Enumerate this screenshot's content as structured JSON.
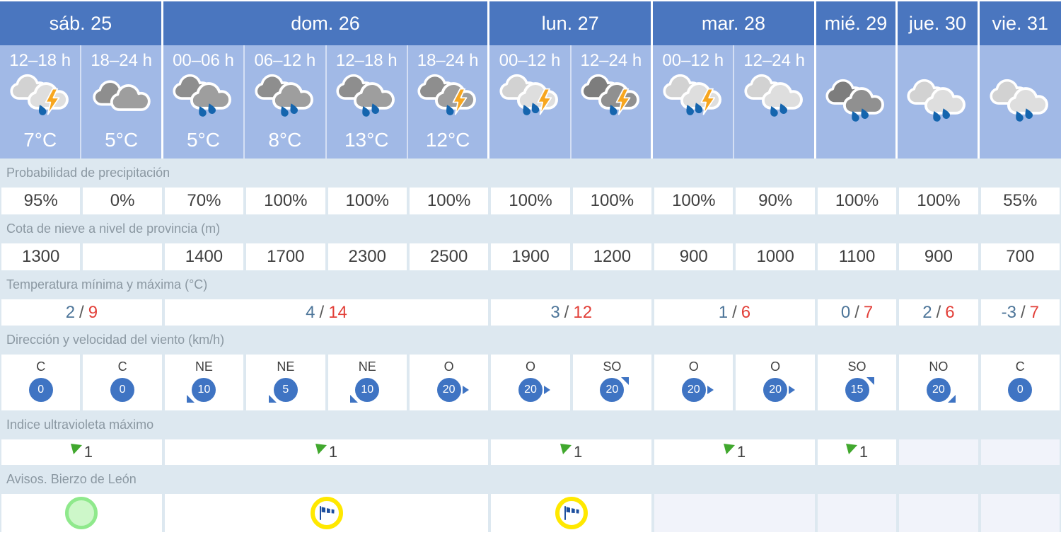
{
  "colors": {
    "day_header_bg": "#4a76bf",
    "hour_cell_bg": "#a1b9e6",
    "label_row_bg": "#dde8f0",
    "label_text": "#8b98a2",
    "value_text": "#3f3f3f",
    "temp_min": "#4d7599",
    "temp_max": "#e23f38",
    "wind_circle": "#3f74c3",
    "uv_flag_green": "#41a82e",
    "warning_green_border": "#8fe98c",
    "warning_green_fill": "#cdf7c9",
    "warning_yellow": "#ffe800",
    "windsock_navy": "#1d4f9f",
    "rain_drop": "#1565ae",
    "lightning_orange": "#f7a61f",
    "cloud_light_back": "#d2d2d2",
    "cloud_light_front": "#dedede",
    "cloud_gray_back": "#8e8e8e",
    "cloud_gray_front": "#9e9e9e",
    "cloud_dark_back": "#7d7d7d",
    "cloud_dark_front": "#909090",
    "empty_cell_bg": "#f1f3fa"
  },
  "table": {
    "days": [
      {
        "label": "sáb. 25",
        "span": 2
      },
      {
        "label": "dom. 26",
        "span": 4
      },
      {
        "label": "lun. 27",
        "span": 2
      },
      {
        "label": "mar. 28",
        "span": 2
      },
      {
        "label": "mié. 29",
        "span": 1
      },
      {
        "label": "jue. 30",
        "span": 1
      },
      {
        "label": "vie. 31",
        "span": 1
      }
    ],
    "columns": [
      {
        "hour": "12–18 h",
        "temp": "7°C",
        "icon": {
          "name": "storm-icon",
          "clouds": "light",
          "drops": 1,
          "bolt": true
        }
      },
      {
        "hour": "18–24 h",
        "temp": "5°C",
        "icon": {
          "name": "cloudy-icon",
          "clouds": "gray",
          "drops": 0,
          "bolt": false
        }
      },
      {
        "hour": "00–06 h",
        "temp": "5°C",
        "icon": {
          "name": "rain-icon",
          "clouds": "gray",
          "drops": 2,
          "bolt": false
        }
      },
      {
        "hour": "06–12 h",
        "temp": "8°C",
        "icon": {
          "name": "rain-icon",
          "clouds": "gray",
          "drops": 2,
          "bolt": false
        }
      },
      {
        "hour": "12–18 h",
        "temp": "13°C",
        "icon": {
          "name": "rain-icon",
          "clouds": "gray",
          "drops": 2,
          "bolt": false
        }
      },
      {
        "hour": "18–24 h",
        "temp": "12°C",
        "icon": {
          "name": "storm-rain-icon",
          "clouds": "gray",
          "drops": 1,
          "bolt": true
        }
      },
      {
        "hour": "00–12 h",
        "temp": "",
        "icon": {
          "name": "storm-rain-icon",
          "clouds": "light",
          "drops": 2,
          "bolt": true
        }
      },
      {
        "hour": "12–24 h",
        "temp": "",
        "icon": {
          "name": "storm-rain-icon",
          "clouds": "dark",
          "drops": 1,
          "bolt": true
        }
      },
      {
        "hour": "00–12 h",
        "temp": "",
        "icon": {
          "name": "storm-rain-icon",
          "clouds": "light",
          "drops": 2,
          "bolt": true
        }
      },
      {
        "hour": "12–24 h",
        "temp": "",
        "icon": {
          "name": "rain-icon",
          "clouds": "light",
          "drops": 2,
          "bolt": false
        }
      },
      {
        "hour": "",
        "temp": "",
        "icon": {
          "name": "rain-icon",
          "clouds": "dark",
          "drops": 2,
          "bolt": false
        }
      },
      {
        "hour": "",
        "temp": "",
        "icon": {
          "name": "rain-icon",
          "clouds": "light",
          "drops": 2,
          "bolt": false
        }
      },
      {
        "hour": "",
        "temp": "",
        "icon": {
          "name": "rain-icon",
          "clouds": "light",
          "drops": 2,
          "bolt": false
        }
      }
    ],
    "rows": {
      "precipitation": {
        "label": "Probabilidad de precipitación",
        "values": [
          "95%",
          "0%",
          "70%",
          "100%",
          "100%",
          "100%",
          "100%",
          "100%",
          "100%",
          "90%",
          "100%",
          "100%",
          "55%"
        ]
      },
      "snow_level": {
        "label": "Cota de nieve a nivel de provincia (m)",
        "values": [
          "1300",
          "",
          "1400",
          "1700",
          "2300",
          "2500",
          "1900",
          "1200",
          "900",
          "1000",
          "1100",
          "900",
          "700"
        ]
      },
      "temperature": {
        "label": "Temperatura mínima y máxima (°C)",
        "separator": "/",
        "values": [
          {
            "min": "2",
            "max": "9",
            "span": 2
          },
          {
            "min": "4",
            "max": "14",
            "span": 4
          },
          {
            "min": "3",
            "max": "12",
            "span": 2
          },
          {
            "min": "1",
            "max": "6",
            "span": 2
          },
          {
            "min": "0",
            "max": "7",
            "span": 1
          },
          {
            "min": "2",
            "max": "6",
            "span": 1
          },
          {
            "min": "-3",
            "max": "7",
            "span": 1
          }
        ]
      },
      "wind": {
        "label": "Dirección y velocidad del viento (km/h)",
        "values": [
          {
            "dir": "C",
            "speed": "0",
            "arrow": "none"
          },
          {
            "dir": "C",
            "speed": "0",
            "arrow": "none"
          },
          {
            "dir": "NE",
            "speed": "10",
            "arrow": "sw"
          },
          {
            "dir": "NE",
            "speed": "5",
            "arrow": "sw"
          },
          {
            "dir": "NE",
            "speed": "10",
            "arrow": "sw"
          },
          {
            "dir": "O",
            "speed": "20",
            "arrow": "e"
          },
          {
            "dir": "O",
            "speed": "20",
            "arrow": "e"
          },
          {
            "dir": "SO",
            "speed": "20",
            "arrow": "ne"
          },
          {
            "dir": "O",
            "speed": "20",
            "arrow": "e"
          },
          {
            "dir": "O",
            "speed": "20",
            "arrow": "e"
          },
          {
            "dir": "SO",
            "speed": "15",
            "arrow": "ne"
          },
          {
            "dir": "NO",
            "speed": "20",
            "arrow": "se"
          },
          {
            "dir": "C",
            "speed": "0",
            "arrow": "none"
          }
        ]
      },
      "uv": {
        "label": "Indice ultravioleta máximo",
        "values": [
          {
            "value": "1",
            "span": 2
          },
          {
            "value": "1",
            "span": 4
          },
          {
            "value": "1",
            "span": 2
          },
          {
            "value": "1",
            "span": 2
          },
          {
            "value": "1",
            "span": 1
          },
          {
            "value": "",
            "span": 1
          },
          {
            "value": "",
            "span": 1
          }
        ]
      },
      "warnings": {
        "label": "Avisos. Bierzo de León",
        "values": [
          {
            "type": "green",
            "span": 2
          },
          {
            "type": "wind",
            "span": 4
          },
          {
            "type": "wind",
            "span": 2
          },
          {
            "type": "none",
            "span": 2
          },
          {
            "type": "none",
            "span": 1
          },
          {
            "type": "none",
            "span": 1
          },
          {
            "type": "none",
            "span": 1
          }
        ]
      }
    }
  }
}
